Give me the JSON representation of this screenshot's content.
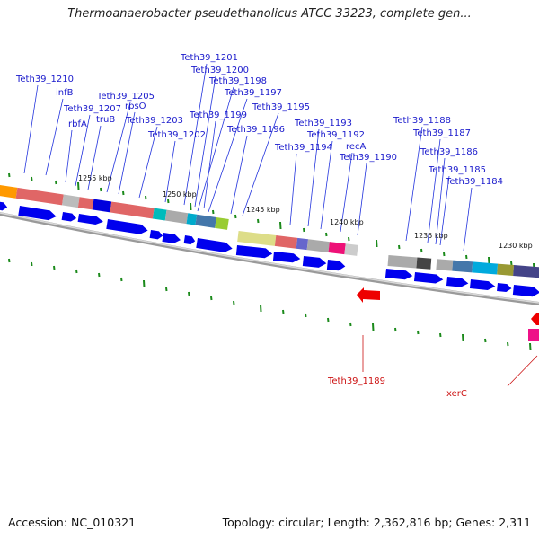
{
  "title": "Thermoanaerobacter pseudethanolicus ATCC 33223, complete gen...",
  "footer": {
    "accession": "Accession: NC_010321",
    "summary": "Topology: circular; Length: 2,362,816 bp; Genes: 2,311"
  },
  "colors": {
    "forward_arrow": "#0000ee",
    "reverse_arrow": "#ee0000",
    "label_line": "#2233dd",
    "reverse_label": "#cc1111",
    "tick": "#1b8a1b",
    "backbone": "#999999"
  },
  "scale_labels": [
    "1255 kbp",
    "1250 kbp",
    "1245 kbp",
    "1240 kbp",
    "1235 kbp",
    "1230 kbp"
  ],
  "gene_labels": [
    "Teth39_1210",
    "infB",
    "rbfA",
    "Teth39_1207",
    "truB",
    "Teth39_1205",
    "rpsO",
    "Teth39_1203",
    "Teth39_1202",
    "Teth39_1201",
    "Teth39_1200",
    "Teth39_1199",
    "Teth39_1198",
    "Teth39_1197",
    "Teth39_1196",
    "Teth39_1195",
    "Teth39_1194",
    "Teth39_1193",
    "Teth39_1192",
    "recA",
    "Teth39_1190",
    "Teth39_1188",
    "Teth39_1187",
    "Teth39_1186",
    "Teth39_1185",
    "Teth39_1184"
  ],
  "reverse_gene_labels": [
    "Teth39_1189",
    "xerC"
  ]
}
